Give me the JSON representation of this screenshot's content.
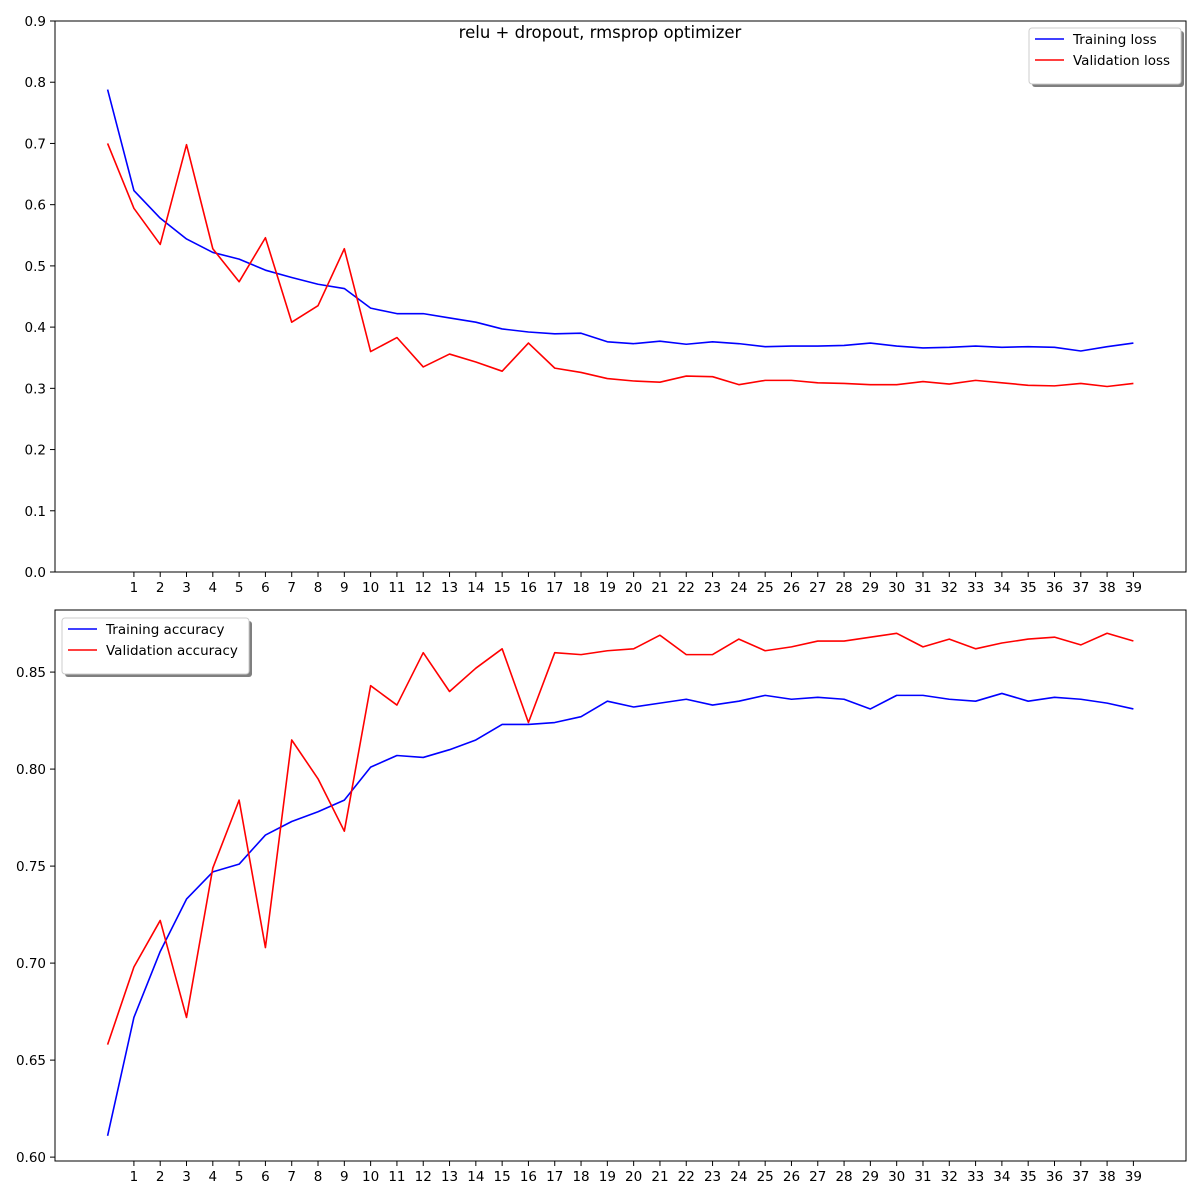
{
  "figure": {
    "suptitle": "relu + dropout, rmsprop optimizer"
  },
  "chart_data": [
    {
      "type": "line",
      "title": "",
      "xlabel": "",
      "ylabel": "",
      "x": [
        0,
        1,
        2,
        3,
        4,
        5,
        6,
        7,
        8,
        9,
        10,
        11,
        12,
        13,
        14,
        15,
        16,
        17,
        18,
        19,
        20,
        21,
        22,
        23,
        24,
        25,
        26,
        27,
        28,
        29,
        30,
        31,
        32,
        33,
        34,
        35,
        36,
        37,
        38,
        39
      ],
      "xticks": [
        1,
        2,
        3,
        4,
        5,
        6,
        7,
        8,
        9,
        10,
        11,
        12,
        13,
        14,
        15,
        16,
        17,
        18,
        19,
        20,
        21,
        22,
        23,
        24,
        25,
        26,
        27,
        28,
        29,
        30,
        31,
        32,
        33,
        34,
        35,
        36,
        37,
        38,
        39
      ],
      "xlim": [
        -2,
        41
      ],
      "ylim": [
        0.0,
        0.9
      ],
      "yticks": [
        0.0,
        0.1,
        0.2,
        0.3,
        0.4,
        0.5,
        0.6,
        0.7,
        0.8,
        0.9
      ],
      "ytick_decimals": 1,
      "grid": false,
      "legend_position": "top-right",
      "series": [
        {
          "name": "Training loss",
          "color": "#0000ff",
          "values": [
            0.788,
            0.623,
            0.578,
            0.544,
            0.522,
            0.511,
            0.493,
            0.481,
            0.47,
            0.463,
            0.431,
            0.422,
            0.422,
            0.415,
            0.408,
            0.397,
            0.392,
            0.389,
            0.39,
            0.376,
            0.373,
            0.377,
            0.372,
            0.376,
            0.373,
            0.368,
            0.369,
            0.369,
            0.37,
            0.374,
            0.369,
            0.366,
            0.367,
            0.369,
            0.367,
            0.368,
            0.367,
            0.361,
            0.368,
            0.374
          ]
        },
        {
          "name": "Validation loss",
          "color": "#ff0000",
          "values": [
            0.7,
            0.594,
            0.535,
            0.698,
            0.528,
            0.474,
            0.546,
            0.408,
            0.435,
            0.528,
            0.36,
            0.383,
            0.335,
            0.356,
            0.343,
            0.328,
            0.374,
            0.333,
            0.326,
            0.316,
            0.312,
            0.31,
            0.32,
            0.319,
            0.306,
            0.313,
            0.313,
            0.309,
            0.308,
            0.306,
            0.306,
            0.311,
            0.307,
            0.313,
            0.309,
            0.305,
            0.304,
            0.308,
            0.303,
            0.308
          ]
        }
      ]
    },
    {
      "type": "line",
      "title": "",
      "xlabel": "",
      "ylabel": "",
      "x": [
        0,
        1,
        2,
        3,
        4,
        5,
        6,
        7,
        8,
        9,
        10,
        11,
        12,
        13,
        14,
        15,
        16,
        17,
        18,
        19,
        20,
        21,
        22,
        23,
        24,
        25,
        26,
        27,
        28,
        29,
        30,
        31,
        32,
        33,
        34,
        35,
        36,
        37,
        38,
        39
      ],
      "xticks": [
        1,
        2,
        3,
        4,
        5,
        6,
        7,
        8,
        9,
        10,
        11,
        12,
        13,
        14,
        15,
        16,
        17,
        18,
        19,
        20,
        21,
        22,
        23,
        24,
        25,
        26,
        27,
        28,
        29,
        30,
        31,
        32,
        33,
        34,
        35,
        36,
        37,
        38,
        39
      ],
      "xlim": [
        -2,
        41
      ],
      "ylim": [
        0.598,
        0.882
      ],
      "yticks": [
        0.6,
        0.65,
        0.7,
        0.75,
        0.8,
        0.85
      ],
      "ytick_decimals": 2,
      "grid": false,
      "legend_position": "top-left",
      "series": [
        {
          "name": "Training accuracy",
          "color": "#0000ff",
          "values": [
            0.611,
            0.672,
            0.706,
            0.733,
            0.747,
            0.751,
            0.766,
            0.773,
            0.778,
            0.784,
            0.801,
            0.807,
            0.806,
            0.81,
            0.815,
            0.823,
            0.823,
            0.824,
            0.827,
            0.835,
            0.832,
            0.834,
            0.836,
            0.833,
            0.835,
            0.838,
            0.836,
            0.837,
            0.836,
            0.831,
            0.838,
            0.838,
            0.836,
            0.835,
            0.839,
            0.835,
            0.837,
            0.836,
            0.834,
            0.831
          ]
        },
        {
          "name": "Validation accuracy",
          "color": "#ff0000",
          "values": [
            0.658,
            0.698,
            0.722,
            0.672,
            0.749,
            0.784,
            0.708,
            0.815,
            0.795,
            0.768,
            0.843,
            0.833,
            0.86,
            0.84,
            0.852,
            0.862,
            0.824,
            0.86,
            0.859,
            0.861,
            0.862,
            0.869,
            0.859,
            0.859,
            0.867,
            0.861,
            0.863,
            0.866,
            0.866,
            0.868,
            0.87,
            0.863,
            0.867,
            0.862,
            0.865,
            0.867,
            0.868,
            0.864,
            0.87,
            0.866
          ]
        }
      ]
    }
  ]
}
